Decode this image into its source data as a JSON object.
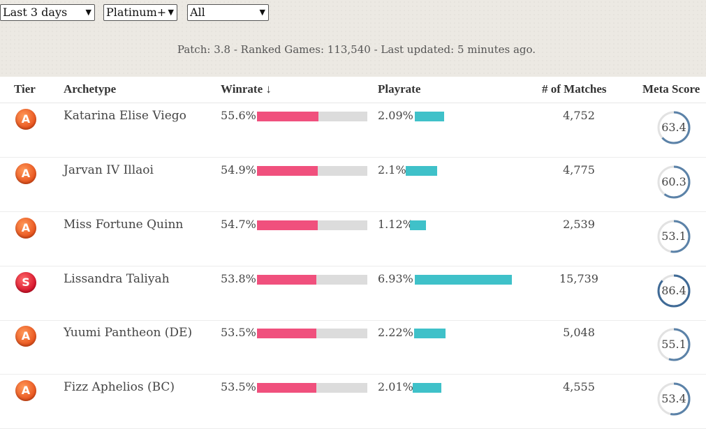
{
  "filters": {
    "time": "Last 3 days",
    "rank": "Platinum+",
    "region": "All"
  },
  "patch_info": "Patch: 3.8 - Ranked Games: 113,540 - Last updated: 5 minutes ago.",
  "table": {
    "headers": {
      "tier": "Tier",
      "archetype": "Archetype",
      "winrate": "Winrate ↓",
      "playrate": "Playrate",
      "matches": "# of Matches",
      "meta_score": "Meta Score"
    },
    "rows": [
      {
        "tier": "A",
        "archetype": "Katarina Elise Viego",
        "winrate": "55.6%",
        "winrate_value": 55.6,
        "playrate": "2.09%",
        "playrate_value": 2.09,
        "matches": "4,752",
        "meta_score": "63.4",
        "meta_value": 63.4
      },
      {
        "tier": "A",
        "archetype": "Jarvan IV Illaoi",
        "winrate": "54.9%",
        "winrate_value": 54.9,
        "playrate": "2.1%",
        "playrate_value": 2.1,
        "matches": "4,775",
        "meta_score": "60.3",
        "meta_value": 60.3
      },
      {
        "tier": "A",
        "archetype": "Miss Fortune Quinn",
        "winrate": "54.7%",
        "winrate_value": 54.7,
        "playrate": "1.12%",
        "playrate_value": 1.12,
        "matches": "2,539",
        "meta_score": "53.1",
        "meta_value": 53.1
      },
      {
        "tier": "S",
        "archetype": "Lissandra Taliyah",
        "winrate": "53.8%",
        "winrate_value": 53.8,
        "playrate": "6.93%",
        "playrate_value": 6.93,
        "matches": "15,739",
        "meta_score": "86.4",
        "meta_value": 86.4
      },
      {
        "tier": "A",
        "archetype": "Yuumi Pantheon (DE)",
        "winrate": "53.5%",
        "winrate_value": 53.5,
        "playrate": "2.22%",
        "playrate_value": 2.22,
        "matches": "5,048",
        "meta_score": "55.1",
        "meta_value": 55.1
      },
      {
        "tier": "A",
        "archetype": "Fizz Aphelios (BC)",
        "winrate": "53.5%",
        "winrate_value": 53.5,
        "playrate": "2.01%",
        "playrate_value": 2.01,
        "matches": "4,555",
        "meta_score": "53.4",
        "meta_value": 53.4
      }
    ]
  },
  "colors": {
    "winrate_bar": "#f0507d",
    "playrate_bar": "#3fc1c9",
    "meta_ring": "#5b82a8",
    "tier_a": "#e8521c",
    "tier_s": "#d6122a"
  }
}
